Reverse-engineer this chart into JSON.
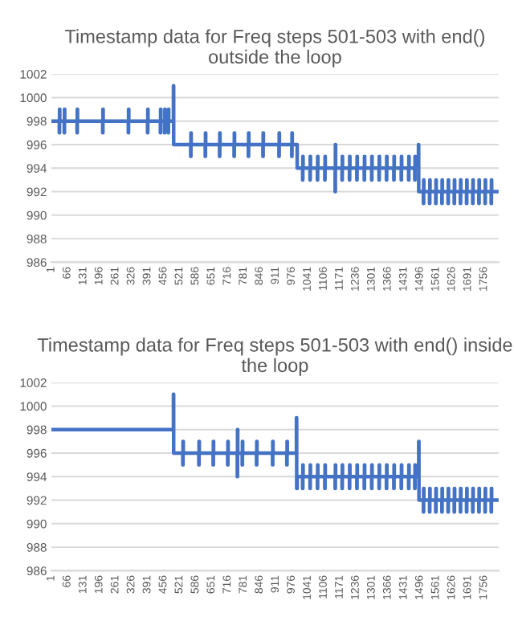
{
  "chart_data": [
    {
      "type": "step",
      "title": "Timestamp data for Freq steps 501-503 with end() outside the loop",
      "xlim": [
        1,
        1815
      ],
      "xticks": [
        1,
        66,
        131,
        196,
        261,
        326,
        391,
        456,
        521,
        586,
        651,
        716,
        781,
        846,
        911,
        976,
        1041,
        1106,
        1171,
        1236,
        1301,
        1366,
        1431,
        1496,
        1561,
        1626,
        1691,
        1756
      ],
      "ylim": [
        986,
        1002
      ],
      "yticks": [
        986,
        988,
        990,
        992,
        994,
        996,
        998,
        1000,
        1002
      ],
      "grid": "y",
      "legend": false,
      "marker": "none",
      "line_style": "solid",
      "series": [
        {
          "color": "#4472c4",
          "x": [
            1,
            33,
            34,
            35,
            53,
            54,
            55,
            105,
            106,
            107,
            209,
            210,
            211,
            313,
            314,
            315,
            391,
            392,
            393,
            443,
            444,
            445,
            460,
            461,
            462,
            475,
            476,
            477,
            495,
            496,
            497,
            566,
            567,
            568,
            625,
            626,
            627,
            683,
            684,
            685,
            742,
            743,
            744,
            800,
            801,
            802,
            859,
            860,
            861,
            924,
            925,
            926,
            976,
            977,
            978,
            998,
            1020,
            1021,
            1022,
            1050,
            1051,
            1052,
            1080,
            1081,
            1082,
            1110,
            1111,
            1112,
            1152,
            1153,
            1154,
            1180,
            1181,
            1182,
            1210,
            1211,
            1212,
            1240,
            1241,
            1242,
            1270,
            1271,
            1272,
            1300,
            1301,
            1302,
            1330,
            1331,
            1332,
            1360,
            1361,
            1362,
            1390,
            1391,
            1392,
            1420,
            1421,
            1422,
            1450,
            1451,
            1452,
            1475,
            1476,
            1477,
            1490,
            1491,
            1510,
            1511,
            1512,
            1535,
            1536,
            1537,
            1560,
            1561,
            1562,
            1585,
            1586,
            1587,
            1610,
            1611,
            1612,
            1635,
            1636,
            1637,
            1660,
            1661,
            1662,
            1685,
            1686,
            1687,
            1710,
            1711,
            1712,
            1735,
            1736,
            1737,
            1760,
            1761,
            1762,
            1785,
            1786,
            1787,
            1810
          ],
          "values": [
            998,
            997,
            999,
            998,
            997,
            999,
            998,
            997,
            999,
            998,
            997,
            999,
            998,
            997,
            999,
            998,
            997,
            999,
            998,
            997,
            999,
            998,
            997,
            999,
            998,
            997,
            999,
            998,
            998,
            1001,
            996,
            995,
            997,
            996,
            995,
            997,
            996,
            995,
            997,
            996,
            995,
            997,
            996,
            995,
            997,
            996,
            995,
            997,
            996,
            995,
            997,
            996,
            995,
            997,
            996,
            994,
            993,
            995,
            994,
            993,
            995,
            994,
            993,
            995,
            994,
            993,
            995,
            994,
            992,
            996,
            994,
            993,
            995,
            994,
            993,
            995,
            994,
            993,
            995,
            994,
            993,
            995,
            994,
            993,
            995,
            994,
            993,
            995,
            994,
            993,
            995,
            994,
            993,
            995,
            994,
            993,
            995,
            994,
            993,
            995,
            994,
            993,
            995,
            994,
            996,
            992,
            991,
            993,
            992,
            991,
            993,
            992,
            991,
            993,
            992,
            991,
            993,
            992,
            991,
            993,
            992,
            991,
            993,
            992,
            991,
            993,
            992,
            991,
            993,
            992,
            991,
            993,
            992,
            991,
            993,
            992,
            991,
            993,
            992,
            991,
            993,
            992,
            992
          ]
        }
      ]
    },
    {
      "type": "step",
      "title": "Timestamp data for Freq steps 501-503 with end() inside the loop",
      "xlim": [
        1,
        1815
      ],
      "xticks": [
        1,
        66,
        131,
        196,
        261,
        326,
        391,
        456,
        521,
        586,
        651,
        716,
        781,
        846,
        911,
        976,
        1041,
        1106,
        1171,
        1236,
        1301,
        1366,
        1431,
        1496,
        1561,
        1626,
        1691,
        1756
      ],
      "ylim": [
        986,
        1002
      ],
      "yticks": [
        986,
        988,
        990,
        992,
        994,
        996,
        998,
        1000,
        1002
      ],
      "grid": "y",
      "legend": false,
      "marker": "none",
      "line_style": "solid",
      "series": [
        {
          "color": "#4472c4",
          "x": [
            1,
            495,
            496,
            497,
            534,
            535,
            536,
            599,
            600,
            601,
            657,
            658,
            659,
            716,
            717,
            718,
            755,
            756,
            757,
            775,
            776,
            777,
            833,
            834,
            835,
            898,
            899,
            900,
            956,
            957,
            958,
            994,
            995,
            996,
            998,
            1020,
            1021,
            1022,
            1050,
            1051,
            1052,
            1080,
            1081,
            1082,
            1110,
            1111,
            1112,
            1152,
            1153,
            1154,
            1180,
            1181,
            1182,
            1210,
            1211,
            1212,
            1240,
            1241,
            1242,
            1270,
            1271,
            1272,
            1300,
            1301,
            1302,
            1330,
            1331,
            1332,
            1360,
            1361,
            1362,
            1390,
            1391,
            1392,
            1420,
            1421,
            1422,
            1450,
            1451,
            1452,
            1475,
            1476,
            1477,
            1490,
            1491,
            1492,
            1510,
            1511,
            1512,
            1535,
            1536,
            1537,
            1560,
            1561,
            1562,
            1585,
            1586,
            1587,
            1610,
            1611,
            1612,
            1635,
            1636,
            1637,
            1660,
            1661,
            1662,
            1685,
            1686,
            1687,
            1710,
            1711,
            1712,
            1735,
            1736,
            1737,
            1760,
            1761,
            1762,
            1785,
            1786,
            1787,
            1810
          ],
          "values": [
            998,
            998,
            1001,
            996,
            995,
            997,
            996,
            995,
            997,
            996,
            995,
            997,
            996,
            995,
            997,
            996,
            994,
            998,
            996,
            995,
            997,
            996,
            995,
            997,
            996,
            995,
            997,
            996,
            995,
            997,
            996,
            996,
            999,
            993,
            994,
            993,
            995,
            994,
            993,
            995,
            994,
            993,
            995,
            994,
            993,
            995,
            994,
            993,
            995,
            994,
            993,
            995,
            994,
            993,
            995,
            994,
            993,
            995,
            994,
            993,
            995,
            994,
            993,
            995,
            994,
            993,
            995,
            994,
            993,
            995,
            994,
            993,
            995,
            994,
            993,
            995,
            994,
            993,
            995,
            994,
            993,
            995,
            994,
            994,
            997,
            992,
            991,
            993,
            992,
            991,
            993,
            992,
            991,
            993,
            992,
            991,
            993,
            992,
            991,
            993,
            992,
            991,
            993,
            992,
            991,
            993,
            992,
            991,
            993,
            992,
            991,
            993,
            992,
            991,
            993,
            992,
            991,
            993,
            992,
            991,
            993,
            992,
            992
          ]
        }
      ]
    }
  ]
}
